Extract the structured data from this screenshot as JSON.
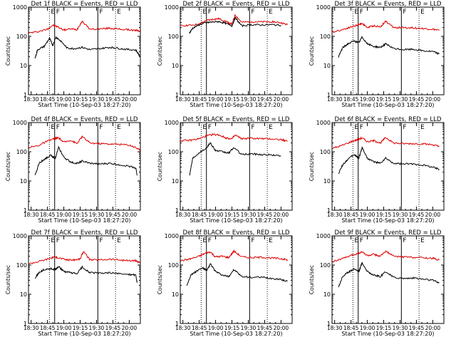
{
  "colors": {
    "events": "#000000",
    "lld": "#dd0000",
    "frame": "#000000",
    "background": "#ffffff"
  },
  "common": {
    "ylabel": "Counts/sec",
    "xlabel": "Start Time (10-Sep-03 18:27:20)",
    "x_ticks": [
      "18:30",
      "18:45",
      "19:00",
      "19:15",
      "19:30",
      "19:45",
      "20:00"
    ],
    "y_ticks": [
      "1",
      "10",
      "100",
      "1000"
    ],
    "markers": [
      {
        "label": "E",
        "time": 18.78,
        "style": "dotted"
      },
      {
        "label": "F",
        "time": 18.86,
        "style": "solid"
      },
      {
        "label": "F",
        "time": 19.52,
        "style": "solid"
      },
      {
        "label": "E",
        "time": 19.79,
        "style": "dotted"
      }
    ]
  },
  "chart_data": [
    {
      "type": "line",
      "title": "Det 1f BLACK = Events, RED = LLD",
      "xlabel": "Start Time (10-Sep-03 18:27:20)",
      "ylabel": "Counts/sec",
      "xlim": [
        18.46,
        20.17
      ],
      "ylim": [
        1,
        1000
      ],
      "yscale": "log",
      "x_tick_values": [
        18.5,
        18.75,
        19.0,
        19.25,
        19.5,
        19.75,
        20.0
      ],
      "series": [
        {
          "name": "LLD",
          "color": "red",
          "x": [
            18.46,
            18.6,
            18.75,
            18.83,
            18.9,
            19.0,
            19.1,
            19.2,
            19.28,
            19.4,
            19.55,
            19.7,
            19.8,
            19.95,
            20.1,
            20.17
          ],
          "values": [
            130,
            145,
            175,
            240,
            215,
            165,
            180,
            170,
            330,
            175,
            180,
            190,
            180,
            170,
            160,
            150
          ]
        },
        {
          "name": "Events",
          "color": "black",
          "x": [
            18.56,
            18.6,
            18.7,
            18.78,
            18.83,
            18.88,
            18.95,
            19.05,
            19.15,
            19.28,
            19.4,
            19.55,
            19.7,
            19.8,
            19.95,
            20.1,
            20.17
          ],
          "values": [
            18,
            35,
            45,
            85,
            50,
            95,
            70,
            40,
            38,
            42,
            35,
            38,
            42,
            40,
            36,
            34,
            20
          ]
        }
      ]
    },
    {
      "type": "line",
      "title": "Det 2f BLACK = Events, RED = LLD",
      "xlabel": "Start Time (10-Sep-03 18:27:20)",
      "ylabel": "Counts/sec",
      "xlim": [
        18.46,
        20.17
      ],
      "ylim": [
        1,
        1000
      ],
      "yscale": "log",
      "x_tick_values": [
        18.5,
        18.75,
        19.0,
        19.25,
        19.5,
        19.75,
        20.0
      ],
      "series": [
        {
          "name": "LLD",
          "color": "red",
          "x": [
            18.46,
            18.6,
            18.75,
            18.85,
            18.95,
            19.05,
            19.15,
            19.25,
            19.3,
            19.4,
            19.55,
            19.7,
            19.85,
            20.0,
            20.1
          ],
          "values": [
            230,
            240,
            260,
            340,
            380,
            400,
            330,
            260,
            540,
            300,
            320,
            310,
            320,
            290,
            250
          ]
        },
        {
          "name": "Events",
          "color": "black",
          "x": [
            18.6,
            18.65,
            18.75,
            18.85,
            18.95,
            19.05,
            19.15,
            19.25,
            19.3,
            19.4,
            19.55,
            19.7,
            19.85,
            20.0
          ],
          "values": [
            130,
            190,
            250,
            290,
            310,
            320,
            280,
            230,
            430,
            230,
            250,
            245,
            250,
            240
          ]
        }
      ]
    },
    {
      "type": "line",
      "title": "Det 3f BLACK = Events, RED = LLD",
      "xlabel": "Start Time (10-Sep-03 18:27:20)",
      "ylabel": "Counts/sec",
      "xlim": [
        18.46,
        20.17
      ],
      "ylim": [
        1,
        1000
      ],
      "yscale": "log",
      "x_tick_values": [
        18.5,
        18.75,
        19.0,
        19.25,
        19.5,
        19.75,
        20.0
      ],
      "series": [
        {
          "name": "LLD",
          "color": "red",
          "x": [
            18.46,
            18.6,
            18.75,
            18.85,
            18.92,
            19.0,
            19.1,
            19.2,
            19.28,
            19.4,
            19.55,
            19.7,
            19.85,
            20.0,
            20.1
          ],
          "values": [
            140,
            165,
            210,
            240,
            280,
            200,
            230,
            210,
            330,
            200,
            200,
            195,
            185,
            175,
            160
          ]
        },
        {
          "name": "Events",
          "color": "black",
          "x": [
            18.56,
            18.62,
            18.7,
            18.8,
            18.87,
            18.92,
            19.0,
            19.1,
            19.2,
            19.28,
            19.4,
            19.55,
            19.7,
            19.85,
            20.0,
            20.1
          ],
          "values": [
            20,
            40,
            55,
            70,
            60,
            95,
            55,
            45,
            42,
            55,
            38,
            35,
            36,
            32,
            30,
            25
          ]
        }
      ]
    },
    {
      "type": "line",
      "title": "Det 4f BLACK = Events, RED = LLD",
      "xlabel": "Start Time (10-Sep-03 18:27:20)",
      "ylabel": "Counts/sec",
      "xlim": [
        18.46,
        20.17
      ],
      "ylim": [
        1,
        1000
      ],
      "yscale": "log",
      "x_tick_values": [
        18.5,
        18.75,
        19.0,
        19.25,
        19.5,
        19.75,
        20.0
      ],
      "series": [
        {
          "name": "LLD",
          "color": "red",
          "x": [
            18.46,
            18.6,
            18.75,
            18.85,
            18.92,
            19.0,
            19.1,
            19.2,
            19.28,
            19.4,
            19.55,
            19.7,
            19.85,
            20.0,
            20.1,
            20.17
          ],
          "values": [
            140,
            160,
            230,
            280,
            300,
            210,
            250,
            190,
            330,
            200,
            190,
            185,
            180,
            170,
            140,
            110
          ]
        },
        {
          "name": "Events",
          "color": "black",
          "x": [
            18.56,
            18.62,
            18.7,
            18.8,
            18.87,
            18.92,
            19.0,
            19.1,
            19.2,
            19.28,
            19.4,
            19.55,
            19.7,
            19.85,
            20.0,
            20.1,
            20.12
          ],
          "values": [
            15,
            40,
            55,
            75,
            60,
            140,
            65,
            45,
            40,
            48,
            40,
            38,
            40,
            36,
            32,
            28,
            16
          ]
        }
      ]
    },
    {
      "type": "line",
      "title": "Det 5f BLACK = Events, RED = LLD",
      "xlabel": "Start Time (10-Sep-03 18:27:20)",
      "ylabel": "Counts/sec",
      "xlim": [
        18.46,
        20.17
      ],
      "ylim": [
        1,
        1000
      ],
      "yscale": "log",
      "x_tick_values": [
        18.5,
        18.75,
        19.0,
        19.25,
        19.5,
        19.75,
        20.0
      ],
      "series": [
        {
          "name": "LLD",
          "color": "red",
          "x": [
            18.46,
            18.6,
            18.75,
            18.85,
            18.95,
            19.05,
            19.15,
            19.25,
            19.3,
            19.4,
            19.55,
            19.7,
            19.85,
            20.0,
            20.1
          ],
          "values": [
            240,
            245,
            280,
            340,
            390,
            380,
            300,
            280,
            370,
            280,
            290,
            280,
            275,
            260,
            230
          ]
        },
        {
          "name": "Events",
          "color": "black",
          "x": [
            18.6,
            18.65,
            18.75,
            18.85,
            18.92,
            19.0,
            19.1,
            19.2,
            19.28,
            19.4,
            19.55,
            19.7,
            19.85,
            20.0
          ],
          "values": [
            15,
            60,
            95,
            130,
            200,
            110,
            100,
            90,
            140,
            80,
            85,
            80,
            78,
            72
          ]
        }
      ]
    },
    {
      "type": "line",
      "title": "Det 6f BLACK = Events, RED = LLD",
      "xlabel": "Start Time (10-Sep-03 18:27:20)",
      "ylabel": "Counts/sec",
      "xlim": [
        18.46,
        20.17
      ],
      "ylim": [
        1,
        1000
      ],
      "yscale": "log",
      "x_tick_values": [
        18.5,
        18.75,
        19.0,
        19.25,
        19.5,
        19.75,
        20.0
      ],
      "series": [
        {
          "name": "LLD",
          "color": "red",
          "x": [
            18.46,
            18.6,
            18.75,
            18.85,
            18.92,
            19.0,
            19.1,
            19.2,
            19.28,
            19.4,
            19.55,
            19.7,
            19.85,
            20.0,
            20.1
          ],
          "values": [
            130,
            160,
            220,
            260,
            300,
            220,
            240,
            200,
            310,
            200,
            190,
            190,
            185,
            175,
            150
          ]
        },
        {
          "name": "Events",
          "color": "black",
          "x": [
            18.56,
            18.62,
            18.7,
            18.8,
            18.87,
            18.92,
            19.0,
            19.1,
            19.2,
            19.28,
            19.4,
            19.55,
            19.7,
            19.85,
            20.0,
            20.1
          ],
          "values": [
            18,
            35,
            55,
            80,
            60,
            140,
            60,
            45,
            40,
            60,
            40,
            38,
            38,
            35,
            30,
            25
          ]
        }
      ]
    },
    {
      "type": "line",
      "title": "Det 7f BLACK = Events, RED = LLD",
      "xlabel": "Start Time (10-Sep-03 18:27:20)",
      "ylabel": "Counts/sec",
      "xlim": [
        18.46,
        20.17
      ],
      "ylim": [
        1,
        1000
      ],
      "yscale": "log",
      "x_tick_values": [
        18.5,
        18.75,
        19.0,
        19.25,
        19.5,
        19.75,
        20.0
      ],
      "series": [
        {
          "name": "LLD",
          "color": "red",
          "x": [
            18.46,
            18.6,
            18.75,
            18.85,
            18.95,
            19.05,
            19.15,
            19.25,
            19.3,
            19.4,
            19.55,
            19.7,
            19.85,
            20.0,
            20.1,
            20.17
          ],
          "values": [
            110,
            130,
            160,
            190,
            170,
            150,
            150,
            160,
            300,
            150,
            150,
            160,
            150,
            140,
            140,
            120
          ]
        },
        {
          "name": "Events",
          "color": "black",
          "x": [
            18.56,
            18.62,
            18.7,
            18.8,
            18.87,
            18.92,
            19.0,
            19.1,
            19.2,
            19.28,
            19.4,
            19.55,
            19.7,
            19.85,
            20.0,
            20.1,
            20.12
          ],
          "values": [
            35,
            55,
            70,
            75,
            70,
            90,
            60,
            55,
            50,
            85,
            55,
            52,
            55,
            50,
            48,
            45,
            25
          ]
        }
      ]
    },
    {
      "type": "line",
      "title": "Det 8f BLACK = Events, RED = LLD",
      "xlabel": "Start Time (10-Sep-03 18:27:20)",
      "ylabel": "Counts/sec",
      "xlim": [
        18.46,
        20.17
      ],
      "ylim": [
        1,
        1000
      ],
      "yscale": "log",
      "x_tick_values": [
        18.5,
        18.75,
        19.0,
        19.25,
        19.5,
        19.75,
        20.0
      ],
      "series": [
        {
          "name": "LLD",
          "color": "red",
          "x": [
            18.46,
            18.6,
            18.75,
            18.85,
            18.92,
            19.0,
            19.1,
            19.2,
            19.28,
            19.4,
            19.55,
            19.7,
            19.85,
            20.0,
            20.1
          ],
          "values": [
            140,
            160,
            200,
            260,
            280,
            190,
            200,
            180,
            300,
            190,
            180,
            185,
            175,
            165,
            150
          ]
        },
        {
          "name": "Events",
          "color": "black",
          "x": [
            18.56,
            18.62,
            18.7,
            18.8,
            18.87,
            18.92,
            19.0,
            19.1,
            19.2,
            19.28,
            19.4,
            19.55,
            19.7,
            19.85,
            20.0,
            20.1
          ],
          "values": [
            20,
            45,
            60,
            80,
            65,
            110,
            60,
            45,
            40,
            70,
            40,
            38,
            38,
            35,
            32,
            28
          ]
        }
      ]
    },
    {
      "type": "line",
      "title": "Det 9f BLACK = Events, RED = LLD",
      "xlabel": "Start Time (10-Sep-03 18:27:20)",
      "ylabel": "Counts/sec",
      "xlim": [
        18.46,
        20.17
      ],
      "ylim": [
        1,
        1000
      ],
      "yscale": "log",
      "x_tick_values": [
        18.5,
        18.75,
        19.0,
        19.25,
        19.5,
        19.75,
        20.0
      ],
      "series": [
        {
          "name": "LLD",
          "color": "red",
          "x": [
            18.46,
            18.6,
            18.75,
            18.85,
            18.92,
            19.0,
            19.1,
            19.2,
            19.28,
            19.4,
            19.55,
            19.7,
            19.85,
            20.0,
            20.1
          ],
          "values": [
            130,
            160,
            210,
            250,
            280,
            210,
            230,
            200,
            300,
            200,
            190,
            185,
            180,
            170,
            150
          ]
        },
        {
          "name": "Events",
          "color": "black",
          "x": [
            18.56,
            18.62,
            18.7,
            18.8,
            18.87,
            18.92,
            19.0,
            19.1,
            19.2,
            19.28,
            19.4,
            19.55,
            19.7,
            19.85,
            20.0,
            20.1
          ],
          "values": [
            18,
            40,
            55,
            75,
            60,
            120,
            60,
            45,
            40,
            60,
            38,
            35,
            36,
            33,
            30,
            25
          ]
        }
      ]
    }
  ]
}
